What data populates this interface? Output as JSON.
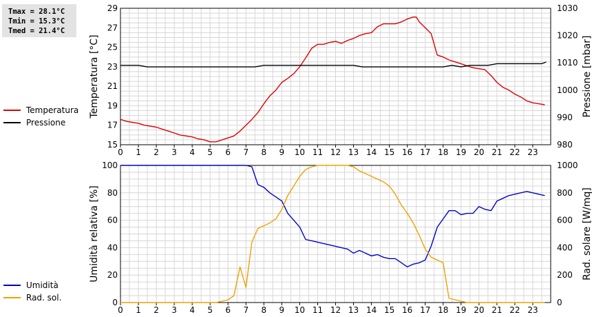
{
  "stats": {
    "tmax": "Tmax = 28.1°C",
    "tmin": "Tmin = 15.3°C",
    "tmed": "Tmed = 21.4°C"
  },
  "chart_data": [
    {
      "type": "line",
      "title": "",
      "x_ticks": [
        "0",
        "1",
        "2",
        "3",
        "4",
        "5",
        "6",
        "7",
        "8",
        "9",
        "10",
        "11",
        "12",
        "13",
        "14",
        "15",
        "16",
        "17",
        "18",
        "19",
        "20",
        "21",
        "22",
        "23"
      ],
      "xlim": [
        0,
        24
      ],
      "grid": true,
      "legend_position": "left",
      "ylabel_left": "Temperatura [°C]",
      "ylabel_right": "Pressione [mbar]",
      "ylim_left": [
        15,
        29
      ],
      "yticks_left": [
        "15",
        "17",
        "19",
        "21",
        "23",
        "25",
        "27",
        "29"
      ],
      "ylim_right": [
        980,
        1030
      ],
      "yticks_right": [
        "980",
        "990",
        "1000",
        "1010",
        "1020",
        "1030"
      ],
      "series": [
        {
          "name": "Temperatura",
          "color": "#dd0000",
          "axis": "left",
          "x": [
            0,
            0.33,
            0.67,
            1,
            1.33,
            1.67,
            2,
            2.33,
            2.67,
            3,
            3.33,
            3.67,
            4,
            4.33,
            4.67,
            5,
            5.33,
            5.67,
            6,
            6.33,
            6.67,
            7,
            7.33,
            7.67,
            8,
            8.33,
            8.67,
            9,
            9.33,
            9.67,
            10,
            10.33,
            10.67,
            11,
            11.33,
            11.67,
            12,
            12.33,
            12.67,
            13,
            13.33,
            13.67,
            14,
            14.33,
            14.67,
            15,
            15.33,
            15.67,
            16,
            16.33,
            16.5,
            16.67,
            17,
            17.33,
            17.67,
            18,
            18.33,
            18.67,
            19,
            19.33,
            19.67,
            20,
            20.33,
            20.67,
            21,
            21.33,
            21.67,
            22,
            22.33,
            22.67,
            23,
            23.33,
            23.67
          ],
          "y": [
            17.6,
            17.4,
            17.3,
            17.2,
            17.0,
            16.9,
            16.8,
            16.6,
            16.4,
            16.2,
            16.0,
            15.9,
            15.8,
            15.6,
            15.5,
            15.3,
            15.3,
            15.5,
            15.7,
            15.9,
            16.4,
            17.0,
            17.6,
            18.3,
            19.2,
            20.0,
            20.6,
            21.4,
            21.8,
            22.3,
            23.0,
            23.9,
            24.9,
            25.3,
            25.3,
            25.5,
            25.6,
            25.4,
            25.7,
            25.9,
            26.2,
            26.4,
            26.5,
            27.1,
            27.4,
            27.4,
            27.4,
            27.6,
            27.9,
            28.1,
            28.1,
            27.6,
            27.0,
            26.4,
            24.2,
            24.0,
            23.7,
            23.5,
            23.3,
            23.1,
            22.9,
            22.8,
            22.7,
            22.1,
            21.4,
            20.9,
            20.6,
            20.2,
            19.9,
            19.5,
            19.3,
            19.2,
            19.1
          ]
        },
        {
          "name": "Pressione",
          "color": "#000000",
          "axis": "right",
          "x": [
            0,
            1,
            1.5,
            2,
            7.5,
            8,
            13,
            13.5,
            18,
            18.5,
            19,
            19.5,
            20,
            20.5,
            21,
            23.5,
            23.75
          ],
          "y": [
            1009.1,
            1009.1,
            1008.5,
            1008.5,
            1008.5,
            1009.1,
            1009.1,
            1008.5,
            1008.5,
            1009.1,
            1008.5,
            1009.1,
            1009.1,
            1009.1,
            1009.7,
            1009.7,
            1010.3
          ]
        }
      ]
    },
    {
      "type": "line",
      "title": "",
      "x_ticks": [
        "0",
        "1",
        "2",
        "3",
        "4",
        "5",
        "6",
        "7",
        "8",
        "9",
        "10",
        "11",
        "12",
        "13",
        "14",
        "15",
        "16",
        "17",
        "18",
        "19",
        "20",
        "21",
        "22",
        "23"
      ],
      "xlim": [
        0,
        24
      ],
      "grid": true,
      "legend_position": "left",
      "ylabel_left": "Umidità relativa [%]",
      "ylabel_right": "Rad. solare [W/mq]",
      "ylim_left": [
        0,
        100
      ],
      "yticks_left": [
        "0",
        "20",
        "40",
        "60",
        "80",
        "100"
      ],
      "ylim_right": [
        0,
        1000
      ],
      "yticks_right": [
        "0",
        "200",
        "400",
        "600",
        "800",
        "1000"
      ],
      "series": [
        {
          "name": "Umidità",
          "color": "#0000cc",
          "axis": "left",
          "x": [
            0,
            6.67,
            7,
            7.33,
            7.67,
            8,
            8.33,
            8.67,
            9,
            9.33,
            9.67,
            10,
            10.33,
            10.67,
            11,
            11.33,
            11.67,
            12,
            12.33,
            12.67,
            13,
            13.33,
            13.67,
            14,
            14.33,
            14.67,
            15,
            15.33,
            15.67,
            16,
            16.33,
            16.67,
            17,
            17.33,
            17.67,
            18,
            18.33,
            18.67,
            19,
            19.33,
            19.67,
            20,
            20.33,
            20.67,
            21,
            21.33,
            21.67,
            22,
            22.33,
            22.67,
            23,
            23.33,
            23.67
          ],
          "y": [
            100,
            100,
            100,
            99,
            86,
            84,
            80,
            77,
            74,
            65,
            60,
            55,
            46,
            45,
            44,
            43,
            42,
            41,
            40,
            39,
            36,
            38,
            36,
            34,
            35,
            33,
            32,
            32,
            29,
            26,
            28,
            29,
            31,
            41,
            55,
            61,
            67,
            67,
            64,
            65,
            65,
            70,
            68,
            67,
            74,
            76,
            78,
            79,
            80,
            81,
            80,
            79,
            78
          ]
        },
        {
          "name": "Rad. sol.",
          "color": "#f0a000",
          "axis": "right",
          "x": [
            0,
            5,
            5.33,
            5.67,
            6,
            6.33,
            6.67,
            7,
            7.33,
            7.67,
            8,
            8.33,
            8.67,
            9,
            9.33,
            9.67,
            10,
            10.33,
            10.67,
            11,
            11.33,
            11.67,
            12,
            12.33,
            12.67,
            13,
            13.33,
            13.67,
            14,
            14.33,
            14.67,
            15,
            15.33,
            15.67,
            16,
            16.33,
            16.67,
            17,
            17.33,
            17.67,
            18,
            18.33,
            18.67,
            19,
            19.33,
            19.67,
            20,
            23.67
          ],
          "y": [
            0,
            0,
            0,
            10,
            20,
            50,
            260,
            110,
            440,
            540,
            560,
            580,
            610,
            680,
            780,
            850,
            920,
            970,
            990,
            1000,
            1000,
            1000,
            1000,
            1000,
            1000,
            990,
            960,
            940,
            920,
            900,
            880,
            850,
            790,
            710,
            650,
            580,
            490,
            390,
            330,
            310,
            290,
            30,
            20,
            10,
            0,
            0,
            0,
            0
          ]
        }
      ]
    }
  ]
}
